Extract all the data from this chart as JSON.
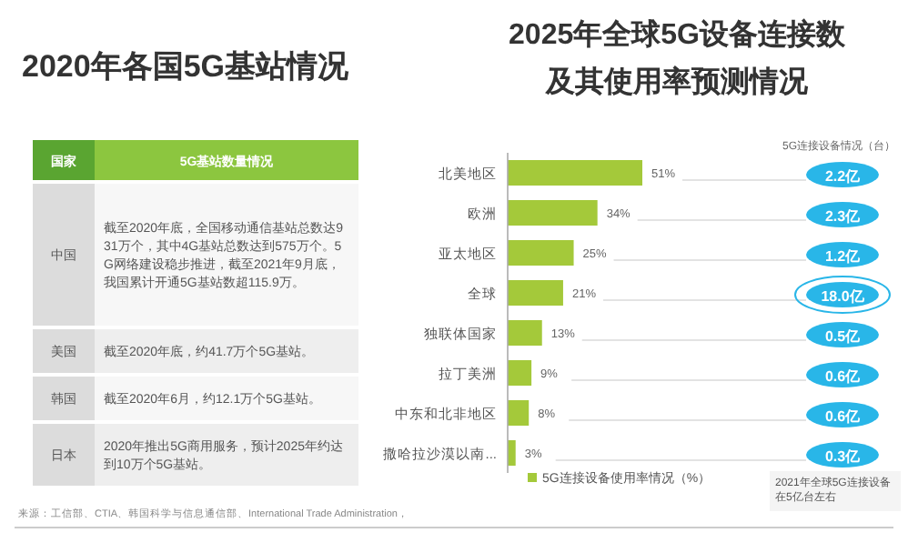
{
  "chart_data": [
    {
      "type": "other",
      "title": "2020年各国5G基站情况",
      "annotations": [
        "国家",
        "5G基站数量情况",
        "中国",
        "截至2020年底，全国移动通信基站总数达931万个，其中4G基站总数达到575万个。5G网络建设稳步推进，截至2021年9月底，我国累计开通5G基站数超115.9万。",
        "美国",
        "截至2020年底，约41.7万个5G基站。",
        "韩国",
        "截至2020年6月，约12.1万个5G基站。",
        "日本",
        "2020年推出5G商用服务，预计2025年约达到10万个5G基站。",
        "来源：工信部、CTIA、韩国科学与信息通信部、International Trade Administration，"
      ]
    },
    {
      "type": "bar",
      "orientation": "horizontal",
      "title": "2025年全球5G设备连接数",
      "subtitle": "及其使用率预测情况",
      "categories": [
        "北美地区",
        "欧洲",
        "亚太地区",
        "全球",
        "独联体国家",
        "拉丁美洲",
        "中东和北非地区",
        "撒哈拉沙漠以南..."
      ],
      "series": [
        {
          "name": "5G连接设备使用率情况（%）",
          "color": "#a4c93a",
          "values": [
            51,
            34,
            25,
            21,
            13,
            9,
            8,
            3
          ],
          "value_labels": [
            "51%",
            "34%",
            "25%",
            "21%",
            "13%",
            "9%",
            "8%",
            "3%"
          ]
        }
      ],
      "relative": false,
      "legend": "bottom",
      "annotations": [
        "5G连接设备情况（台）",
        "2.2亿",
        "2.3亿",
        "1.2亿",
        "18.0亿",
        "0.5亿",
        "0.6亿",
        "0.6亿",
        "0.3亿",
        "2021年全球5G连接设备在5亿台左右"
      ]
    }
  ]
}
